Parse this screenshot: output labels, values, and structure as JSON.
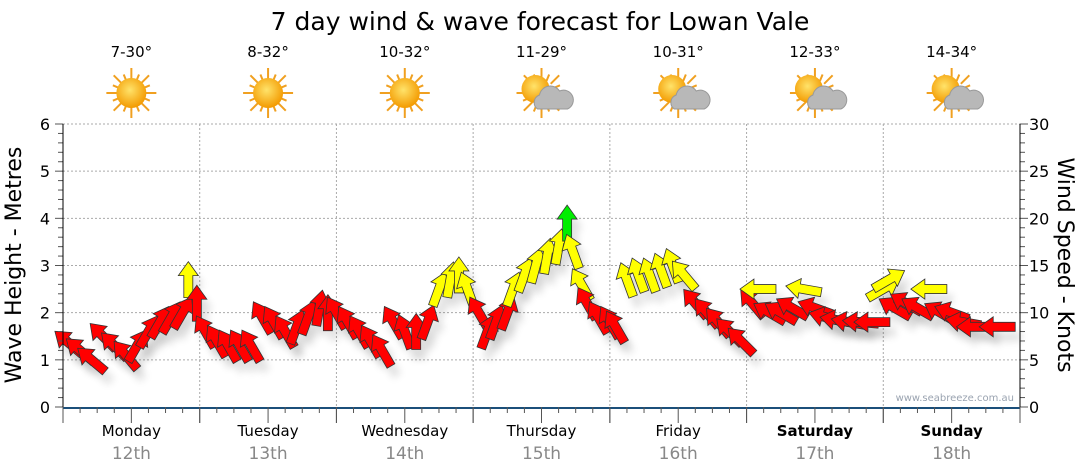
{
  "chart_data": {
    "type": "scatter",
    "title": "7 day wind & wave forecast for Lowan Vale",
    "ylabel": "Wave Height - Metres",
    "y2label": "Wind Speed - Knots",
    "ylim": [
      0,
      6
    ],
    "y2lim": [
      0,
      30
    ],
    "yticks": [
      "0",
      "1",
      "2",
      "3",
      "4",
      "5",
      "6"
    ],
    "y2ticks": [
      "0",
      "5",
      "10",
      "15",
      "20",
      "25",
      "30"
    ],
    "grid": true,
    "watermark": "www.seabreeze.com.au",
    "days": [
      {
        "name": "Monday",
        "date": "12th",
        "temp": "7-30°",
        "icon": "sun-icon",
        "bold": false
      },
      {
        "name": "Tuesday",
        "date": "13th",
        "temp": "8-32°",
        "icon": "sun-icon",
        "bold": false
      },
      {
        "name": "Wednesday",
        "date": "14th",
        "temp": "10-32°",
        "icon": "sun-icon",
        "bold": false
      },
      {
        "name": "Thursday",
        "date": "15th",
        "temp": "11-29°",
        "icon": "partly-cloudy-icon",
        "bold": false
      },
      {
        "name": "Friday",
        "date": "16th",
        "temp": "10-31°",
        "icon": "partly-cloudy-icon",
        "bold": false
      },
      {
        "name": "Saturday",
        "date": "17th",
        "temp": "12-33°",
        "icon": "partly-cloudy-icon",
        "bold": true
      },
      {
        "name": "Sunday",
        "date": "18th",
        "temp": "14-34°",
        "icon": "partly-cloudy-icon",
        "bold": true
      }
    ],
    "wind_colors": {
      "light": "#ff0000",
      "moderate": "#ffff00",
      "strong": "#00ee00"
    },
    "wind_thresholds_knots": [
      12,
      19.5
    ],
    "wind": [
      [
        1,
        6.8,
        -50
      ],
      [
        3,
        6,
        -50
      ],
      [
        5,
        5,
        -50
      ],
      [
        7,
        7.5,
        -45
      ],
      [
        9,
        6.5,
        -45
      ],
      [
        11,
        5.5,
        -40
      ],
      [
        13,
        6.5,
        30
      ],
      [
        15,
        8,
        30
      ],
      [
        17,
        9,
        30
      ],
      [
        19,
        9.5,
        30
      ],
      [
        21,
        10,
        30
      ],
      [
        22,
        13.5,
        0
      ],
      [
        23.5,
        11,
        0
      ],
      [
        25,
        8,
        -30
      ],
      [
        27,
        7,
        -30
      ],
      [
        29,
        6.5,
        -30
      ],
      [
        31,
        6.5,
        -30
      ],
      [
        33,
        6.5,
        -30
      ],
      [
        35,
        9.5,
        -30
      ],
      [
        37,
        9,
        -30
      ],
      [
        39,
        8,
        -30
      ],
      [
        41,
        8.5,
        20
      ],
      [
        43,
        9.5,
        20
      ],
      [
        45,
        10.5,
        10
      ],
      [
        46.5,
        10,
        0
      ],
      [
        48,
        10,
        -30
      ],
      [
        50,
        9,
        -30
      ],
      [
        52,
        8,
        -30
      ],
      [
        54,
        7,
        -30
      ],
      [
        56,
        6,
        -30
      ],
      [
        58,
        9,
        -30
      ],
      [
        60,
        8,
        -20
      ],
      [
        62,
        8,
        0
      ],
      [
        64,
        9,
        20
      ],
      [
        66,
        12.5,
        20
      ],
      [
        68,
        13.5,
        10
      ],
      [
        69.5,
        14,
        0
      ],
      [
        71,
        12.5,
        -20
      ],
      [
        73,
        10,
        -30
      ],
      [
        74.5,
        8,
        20
      ],
      [
        76,
        9,
        20
      ],
      [
        78,
        10,
        20
      ],
      [
        79,
        12.5,
        20
      ],
      [
        81,
        14,
        20
      ],
      [
        83,
        15,
        15
      ],
      [
        85,
        16,
        10
      ],
      [
        87,
        17,
        10
      ],
      [
        88.5,
        19.5,
        0
      ],
      [
        89.5,
        16.5,
        -20
      ],
      [
        91,
        13,
        -30
      ],
      [
        92,
        11,
        -30
      ],
      [
        94,
        9.5,
        -30
      ],
      [
        96,
        9,
        -30
      ],
      [
        97,
        8.5,
        -30
      ],
      [
        99,
        13.5,
        -20
      ],
      [
        101,
        14,
        -20
      ],
      [
        103,
        14,
        -20
      ],
      [
        105,
        14.5,
        -20
      ],
      [
        107,
        15,
        -20
      ],
      [
        109,
        14,
        -40
      ],
      [
        111,
        11,
        -40
      ],
      [
        113,
        10,
        -40
      ],
      [
        115,
        9,
        -40
      ],
      [
        117,
        8,
        -45
      ],
      [
        119,
        7,
        -45
      ],
      [
        121,
        11,
        -40
      ],
      [
        122,
        12.5,
        -90
      ],
      [
        124,
        10,
        -60
      ],
      [
        126,
        10,
        -60
      ],
      [
        128,
        10.5,
        -60
      ],
      [
        130,
        12.5,
        -80
      ],
      [
        132,
        10.5,
        -70
      ],
      [
        134,
        9.5,
        -75
      ],
      [
        136,
        9.2,
        -80
      ],
      [
        138,
        9,
        -80
      ],
      [
        140,
        9,
        -85
      ],
      [
        142,
        9,
        -90
      ],
      [
        144,
        12.5,
        60
      ],
      [
        145,
        13.5,
        60
      ],
      [
        146,
        10.5,
        -60
      ],
      [
        148,
        11,
        -60
      ],
      [
        150,
        10.5,
        -60
      ],
      [
        152,
        12.5,
        -90
      ],
      [
        154,
        10,
        -60
      ],
      [
        156,
        10,
        -70
      ],
      [
        158,
        9,
        -80
      ],
      [
        160,
        8.5,
        -90
      ],
      [
        164,
        8.5,
        -90
      ]
    ]
  }
}
